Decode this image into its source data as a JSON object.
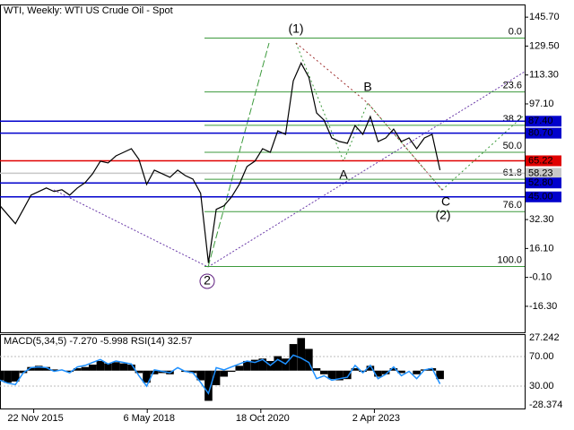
{
  "chart_data": {
    "type": "line",
    "title": "WTI, Weekly:  WTI US Crude Oil - Spot",
    "x": [
      "2015-03",
      "2015-05",
      "2015-07",
      "2015-09",
      "2015-11",
      "2016-01",
      "2016-03",
      "2016-05",
      "2016-07",
      "2016-09",
      "2016-11",
      "2017-01",
      "2017-03",
      "2017-05",
      "2017-07",
      "2017-09",
      "2017-11",
      "2018-01",
      "2018-03",
      "2018-05",
      "2018-07",
      "2018-09",
      "2018-11",
      "2019-01",
      "2019-03",
      "2019-05",
      "2019-07",
      "2019-09",
      "2019-11",
      "2020-01",
      "2020-03",
      "2020-05",
      "2020-07",
      "2020-09",
      "2020-11",
      "2021-01",
      "2021-03",
      "2021-05",
      "2021-07",
      "2021-09",
      "2021-11",
      "2022-01",
      "2022-03",
      "2022-05",
      "2022-07",
      "2022-09",
      "2022-11",
      "2023-01",
      "2023-03",
      "2023-05",
      "2023-07",
      "2023-09",
      "2023-11",
      "2024-01",
      "2024-03",
      "2024-05",
      "2024-07",
      "2024-09"
    ],
    "values": [
      40,
      35,
      30,
      38,
      46,
      48,
      50,
      48,
      49,
      46,
      50,
      53,
      58,
      65,
      64,
      68,
      70,
      72,
      66,
      52,
      60,
      58,
      56,
      60,
      57,
      55,
      47,
      8,
      38,
      40,
      45,
      52,
      62,
      65,
      72,
      70,
      82,
      80,
      110,
      120,
      112,
      92,
      88,
      78,
      76,
      75,
      85,
      80,
      90,
      76,
      78,
      83,
      76,
      78,
      72,
      78,
      80,
      60
    ],
    "color": "#000000",
    "xlim": [
      "2015-03-01",
      "2026-07-01"
    ],
    "xticks": [
      {
        "value": "2015-11-22",
        "label": "22 Nov 2015"
      },
      {
        "value": "2018-05-06",
        "label": "6 May 2018"
      },
      {
        "value": "2020-10-18",
        "label": "18 Oct 2020"
      },
      {
        "value": "2023-04-02",
        "label": "2 Apr 2023"
      }
    ],
    "ylim": [
      -31.4,
      152.8
    ],
    "yticks": [
      {
        "value": 145.7,
        "label": "145.70"
      },
      {
        "value": 129.5,
        "label": "129.50"
      },
      {
        "value": 113.3,
        "label": "113.30"
      },
      {
        "value": 97.1,
        "label": "97.10"
      },
      {
        "value": 32.3,
        "label": "32.30"
      },
      {
        "value": 16.1,
        "label": "16.10"
      },
      {
        "value": -0.1,
        "label": "-0.10"
      },
      {
        "value": -16.3,
        "label": "-16.30"
      }
    ],
    "levels": [
      {
        "value": 87.4,
        "label": "87.40",
        "color": "#0000cc"
      },
      {
        "value": 80.7,
        "label": "80.70",
        "color": "#0000cc"
      },
      {
        "value": 65.22,
        "label": "65.22",
        "color": "#e00000"
      },
      {
        "value": 58.23,
        "label": "58.23",
        "color": "#c8c8c8"
      },
      {
        "value": 52.8,
        "label": "52.80",
        "color": "#0000cc"
      },
      {
        "value": 45,
        "label": "45.00",
        "color": "#0000cc"
      }
    ],
    "fib": {
      "high": 134,
      "low": 6,
      "color": "#3c9a3c",
      "levels": [
        {
          "value": 0,
          "label": "0.0"
        },
        {
          "value": 23.6,
          "label": "23.6"
        },
        {
          "value": 38.2,
          "label": "38.2"
        },
        {
          "value": 50,
          "label": "50.0"
        },
        {
          "value": 61.8,
          "label": "61.8"
        },
        {
          "value": 76,
          "label": "76.0"
        },
        {
          "value": 100,
          "label": "100.0"
        }
      ]
    },
    "waves": [
      {
        "label": "(1)",
        "color": "#3c9a3c"
      },
      {
        "label": "B",
        "color": "#a03030"
      },
      {
        "label": "A",
        "color": "#a03030"
      },
      {
        "label": "C",
        "color": "#a03030"
      },
      {
        "label": "(2)",
        "color": "#3c9a3c"
      },
      {
        "label": "2",
        "color": "#602080"
      }
    ],
    "indicator": {
      "title": "MACD(5,34,5) -7.270 -5.998 RSI(14) 32.57",
      "macd": [
        -8,
        -10,
        -9,
        -2,
        3,
        4,
        3,
        1,
        0,
        -1,
        2,
        3,
        5,
        8,
        6,
        7,
        6,
        5,
        -2,
        -10,
        -3,
        -2,
        -3,
        0,
        -1,
        -2,
        -8,
        -25,
        -12,
        -5,
        -1,
        4,
        8,
        9,
        10,
        8,
        12,
        10,
        22,
        27,
        18,
        2,
        -3,
        -7,
        -8,
        -7,
        2,
        -1,
        4,
        -5,
        -3,
        2,
        -2,
        0,
        -3,
        1,
        2,
        -7
      ],
      "macd_color": "#000000",
      "rsi": [
        38,
        34,
        32,
        48,
        55,
        56,
        55,
        50,
        52,
        48,
        56,
        58,
        62,
        66,
        60,
        64,
        62,
        60,
        44,
        30,
        52,
        50,
        48,
        55,
        50,
        48,
        35,
        20,
        55,
        52,
        56,
        60,
        64,
        62,
        66,
        58,
        66,
        60,
        72,
        68,
        62,
        40,
        44,
        38,
        40,
        42,
        58,
        48,
        58,
        40,
        46,
        56,
        44,
        50,
        40,
        52,
        54,
        33
      ],
      "rsi_color": "#1e90ff",
      "ylim": [
        -28.374,
        27.242
      ],
      "yticks": [
        27.242,
        -28.374
      ],
      "y2lim": [
        4.5,
        95.5
      ],
      "y2ticks": [
        {
          "value": 70,
          "label": "70.00"
        },
        {
          "value": 30,
          "label": "30.00"
        }
      ]
    }
  }
}
